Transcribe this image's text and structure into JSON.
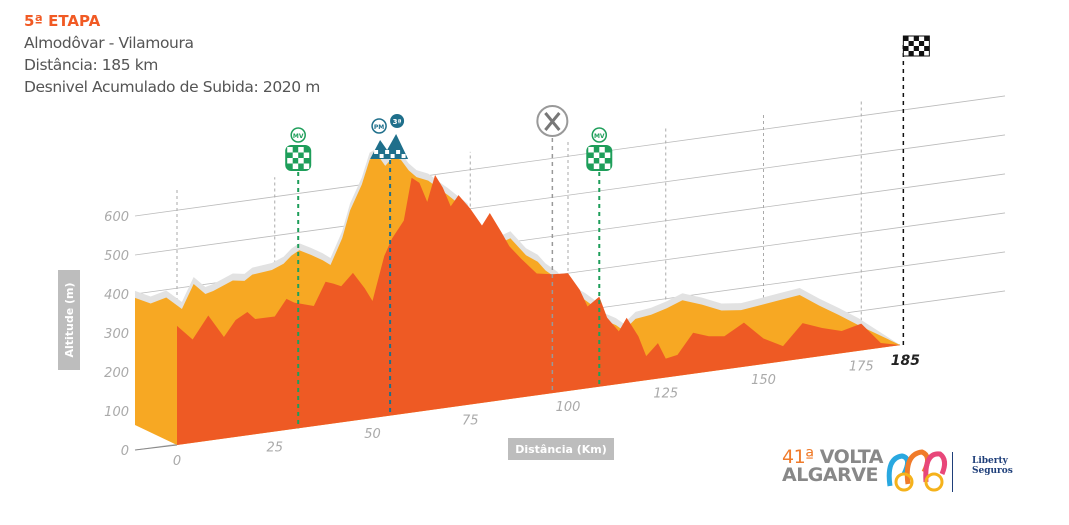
{
  "header": {
    "stage": "5ª ETAPA",
    "route": "Almodôvar - Vilamoura",
    "distance": "Distância: 185 km",
    "climb": "Desnivel Acumulado de Subida: 2020 m"
  },
  "colors": {
    "title": "#F15A24",
    "surface": "#F7A823",
    "front": "#EE5A24",
    "shadow": "#E2E2E2",
    "sprint": "#1E9E5A",
    "kom": "#1F6F8B",
    "grid": "#BBBBBB"
  },
  "markers": [
    {
      "type": "sprint",
      "km": 31,
      "label": "MV"
    },
    {
      "type": "kom",
      "km": 54.5,
      "label": "PM",
      "category": "3ª"
    },
    {
      "type": "feed",
      "km": 96,
      "label": ""
    },
    {
      "type": "sprint",
      "km": 108,
      "label": "MV"
    },
    {
      "type": "finish",
      "km": 185,
      "label": ""
    }
  ],
  "logo": {
    "edition": "41ª",
    "line1": "VOLTA",
    "line2": "ALGARVE",
    "sponsor1": "Liberty",
    "sponsor2": "Seguros"
  },
  "chart_data": {
    "type": "area",
    "title": "5ª ETAPA",
    "xlabel": "Distância (Km)",
    "ylabel": "Altitude (m)",
    "xlim": [
      0,
      185
    ],
    "ylim": [
      0,
      600
    ],
    "x_ticks": [
      "0",
      "25",
      "50",
      "75",
      "100",
      "125",
      "150",
      "175",
      "185"
    ],
    "x_tick_values": [
      0,
      25,
      50,
      75,
      100,
      125,
      150,
      175,
      185
    ],
    "y_ticks": [
      "0",
      "100",
      "200",
      "300",
      "400",
      "500",
      "600"
    ],
    "y_tick_values": [
      0,
      100,
      200,
      300,
      400,
      500,
      600
    ],
    "grid": true,
    "series": [
      {
        "name": "Altitude",
        "x": [
          0,
          4,
          8,
          12,
          15,
          18,
          20,
          25,
          28,
          30,
          35,
          38,
          40,
          42,
          45,
          48,
          50,
          53,
          55,
          58,
          60,
          62,
          64,
          66,
          68,
          70,
          72,
          75,
          78,
          80,
          83,
          85,
          88,
          92,
          96,
          100,
          103,
          105,
          108,
          110,
          113,
          115,
          118,
          120,
          123,
          125,
          128,
          132,
          136,
          140,
          145,
          150,
          155,
          160,
          165,
          170,
          175,
          180,
          185
        ],
        "y": [
          390,
          370,
          380,
          345,
          405,
          375,
          380,
          400,
          395,
          408,
          413,
          425,
          443,
          454,
          438,
          420,
          405,
          470,
          538,
          600,
          661,
          671,
          640,
          660,
          650,
          620,
          600,
          587,
          560,
          543,
          515,
          497,
          415,
          397,
          410,
          361,
          340,
          315,
          290,
          259,
          240,
          226,
          200,
          167,
          150,
          133,
          159,
          164,
          175,
          190,
          172,
          150,
          144,
          150,
          156,
          162,
          128,
          97,
          64
        ]
      }
    ]
  }
}
